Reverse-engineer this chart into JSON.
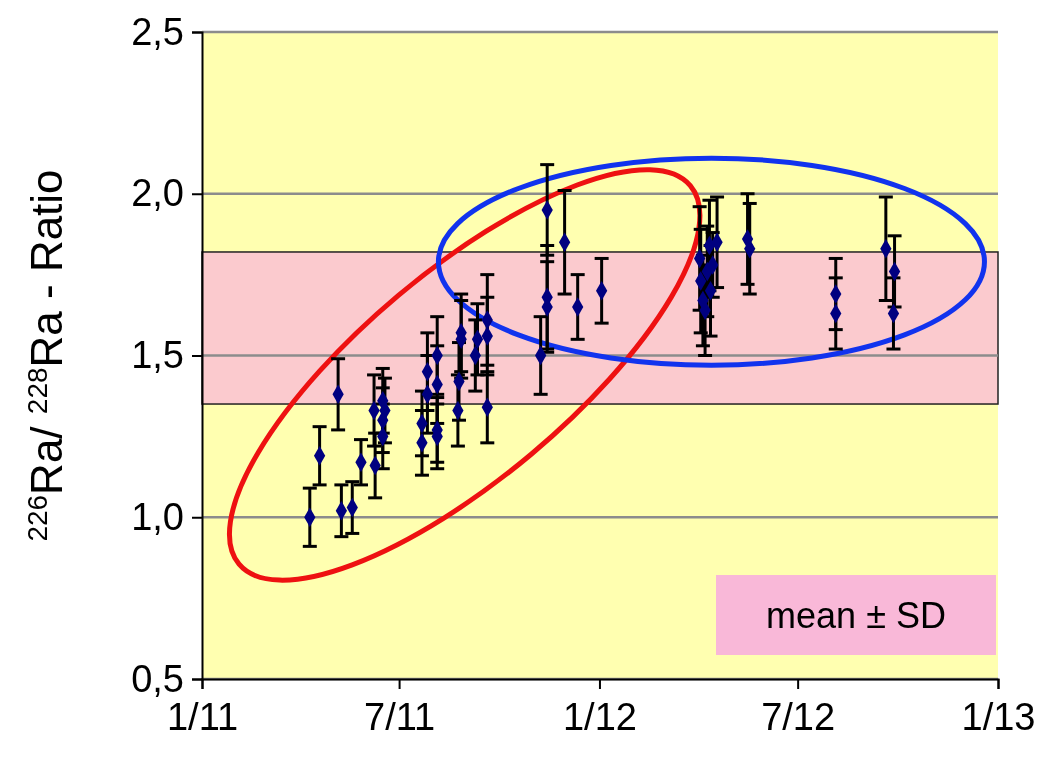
{
  "chart_data": {
    "type": "scatter",
    "ylabel": "$^{226}$Ra/ $^{228}$Ra - Ratio",
    "xlim": [
      "2011-01-01",
      "2013-01-01"
    ],
    "xticks": [
      {
        "value": "2011-01-01",
        "label": "1/11"
      },
      {
        "value": "2011-07-01",
        "label": "7/11"
      },
      {
        "value": "2012-01-01",
        "label": "1/12"
      },
      {
        "value": "2012-07-01",
        "label": "7/12"
      },
      {
        "value": "2013-01-01",
        "label": "1/13"
      }
    ],
    "ylim": [
      0.5,
      2.5
    ],
    "yticks": [
      {
        "value": 0.5,
        "label": "0,5"
      },
      {
        "value": 1.0,
        "label": "1,0"
      },
      {
        "value": 1.5,
        "label": "1,5"
      },
      {
        "value": 2.0,
        "label": "2,0"
      },
      {
        "value": 2.5,
        "label": "2,5"
      }
    ],
    "grid": "y",
    "marker": "diamond",
    "legend": "bottom right",
    "bands": [
      {
        "axis": "y",
        "from": 1.35,
        "to": 1.82,
        "label": "mean ± SD",
        "color": "#f9b8d8"
      }
    ],
    "series": [
      {
        "color": "#000080",
        "x": [
          "2011-04-10",
          "2011-04-19",
          "2011-05-06",
          "2011-05-09",
          "2011-05-19",
          "2011-05-27",
          "2011-06-09",
          "2011-06-08",
          "2011-06-18",
          "2011-06-16",
          "2011-06-16",
          "2011-06-16",
          "2011-07-22",
          "2011-07-22",
          "2011-07-27",
          "2011-07-27",
          "2011-08-05",
          "2011-08-05",
          "2011-08-05",
          "2011-08-05",
          "2011-08-24",
          "2011-08-25",
          "2011-08-27",
          "2011-08-27",
          "2011-09-09",
          "2011-09-11",
          "2011-09-20",
          "2011-09-20",
          "2011-09-20",
          "2011-11-08",
          "2011-11-14",
          "2011-11-14",
          "2011-11-14",
          "2011-11-30",
          "2011-12-12",
          "2012-01-03",
          "2012-04-02",
          "2012-04-03",
          "2012-04-05",
          "2012-04-07",
          "2012-04-09",
          "2012-04-11",
          "2012-04-12",
          "2012-04-14",
          "2012-04-18",
          "2012-05-16",
          "2012-05-18",
          "2012-08-05",
          "2012-08-05",
          "2012-09-20",
          "2012-09-28",
          "2012-09-27"
        ],
        "values": [
          1.0,
          1.19,
          1.38,
          1.02,
          1.03,
          1.17,
          1.16,
          1.33,
          1.33,
          1.3,
          1.25,
          1.36,
          1.23,
          1.29,
          1.38,
          1.45,
          1.27,
          1.25,
          1.41,
          1.5,
          1.33,
          1.42,
          1.55,
          1.57,
          1.5,
          1.55,
          1.34,
          1.61,
          1.56,
          1.5,
          1.95,
          1.68,
          1.65,
          1.85,
          1.65,
          1.7,
          1.8,
          1.73,
          1.67,
          1.64,
          1.76,
          1.84,
          1.7,
          1.78,
          1.85,
          1.86,
          1.83,
          1.69,
          1.63,
          1.83,
          1.76,
          1.63
        ],
        "errors": [
          0.09,
          0.09,
          0.11,
          0.08,
          0.08,
          0.07,
          0.1,
          0.11,
          0.1,
          0.1,
          0.1,
          0.1,
          0.1,
          0.1,
          0.12,
          0.12,
          0.1,
          0.1,
          0.12,
          0.12,
          0.11,
          0.12,
          0.12,
          0.12,
          0.11,
          0.11,
          0.11,
          0.14,
          0.12,
          0.12,
          0.14,
          0.16,
          0.14,
          0.16,
          0.1,
          0.1,
          0.16,
          0.16,
          0.14,
          0.14,
          0.14,
          0.14,
          0.14,
          0.1,
          0.14,
          0.14,
          0.14,
          0.11,
          0.11,
          0.16,
          0.11,
          0.11
        ]
      }
    ]
  }
}
